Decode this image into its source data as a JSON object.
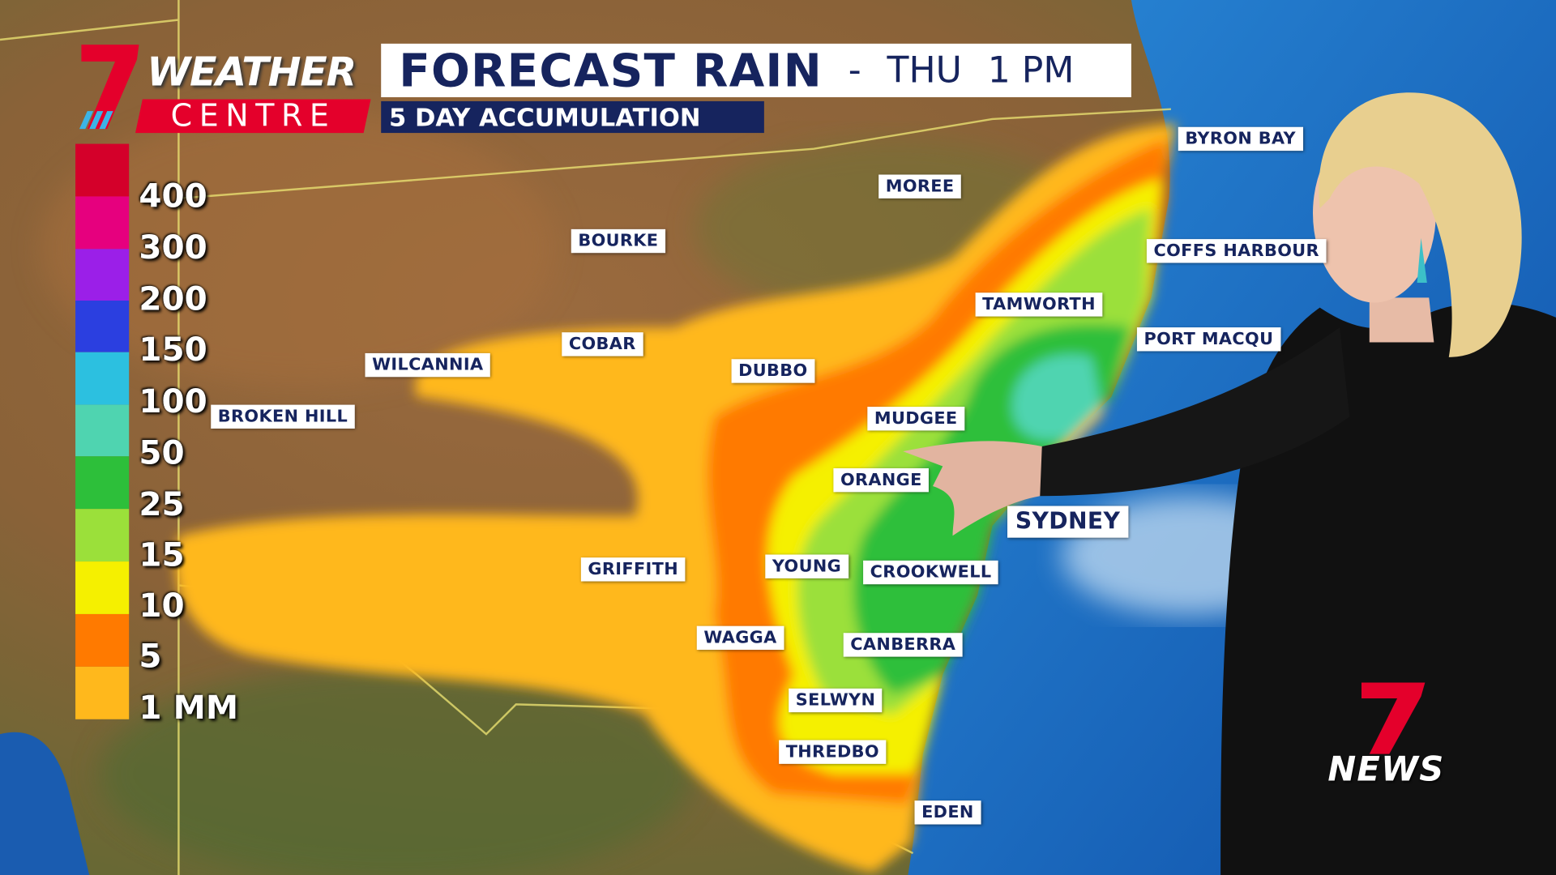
{
  "logo": {
    "line1": "WEATHER",
    "line2": "CENTRE"
  },
  "header": {
    "title": "FORECAST RAIN",
    "separator": "-",
    "day": "THU",
    "time": "1 PM",
    "subtitle": "5 DAY ACCUMULATION"
  },
  "legend": [
    "400",
    "300",
    "200",
    "150",
    "100",
    "50",
    "25",
    "15",
    "10",
    "5",
    "1 MM"
  ],
  "places": [
    "BYRON BAY",
    "MOREE",
    "BOURKE",
    "COFFS HARBOUR",
    "TAMWORTH",
    "PORT MACQU",
    "COBAR",
    "WILCANNIA",
    "DUBBO",
    "BROKEN HILL",
    "MUDGEE",
    "ORANGE",
    "SYDNEY",
    "GRIFFITH",
    "YOUNG",
    "CROOKWELL",
    "WAGGA",
    "CANBERRA",
    "SELWYN",
    "THREDBO",
    "EDEN"
  ],
  "broadcaster": {
    "name": "NEWS"
  }
}
